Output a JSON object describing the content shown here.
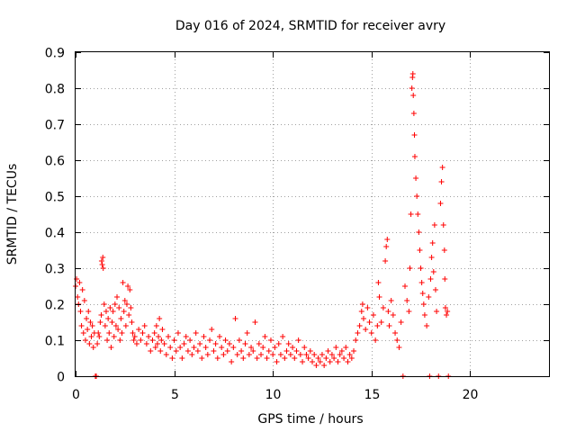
{
  "chart_data": {
    "type": "scatter",
    "title": "Day 016 of 2024, SRMTID for receiver avry",
    "xlabel": "GPS time / hours",
    "ylabel": "SRMTID / TECUs",
    "xlim": [
      0,
      24
    ],
    "ylim": [
      0,
      0.9
    ],
    "x_ticks": [
      0,
      5,
      10,
      15,
      20
    ],
    "y_ticks": [
      0,
      0.1,
      0.2,
      0.3,
      0.4,
      0.5,
      0.6,
      0.7,
      0.8,
      0.9
    ],
    "x_tick_labels": [
      "0",
      "5",
      "10",
      "15",
      "20"
    ],
    "y_tick_labels": [
      "0",
      "0.1",
      "0.2",
      "0.3",
      "0.4",
      "0.5",
      "0.6",
      "0.7",
      "0.8",
      "0.9"
    ],
    "grid": true,
    "marker": "+",
    "series": [
      {
        "name": "SRMTID",
        "color": "#ff0000",
        "points": [
          [
            0.0,
            0.25
          ],
          [
            0.05,
            0.27
          ],
          [
            0.1,
            0.22
          ],
          [
            0.15,
            0.2
          ],
          [
            0.2,
            0.26
          ],
          [
            0.25,
            0.18
          ],
          [
            0.3,
            0.14
          ],
          [
            0.35,
            0.24
          ],
          [
            0.4,
            0.12
          ],
          [
            0.45,
            0.21
          ],
          [
            0.5,
            0.1
          ],
          [
            0.55,
            0.16
          ],
          [
            0.6,
            0.13
          ],
          [
            0.65,
            0.18
          ],
          [
            0.7,
            0.09
          ],
          [
            0.75,
            0.15
          ],
          [
            0.8,
            0.11
          ],
          [
            0.85,
            0.14
          ],
          [
            0.9,
            0.08
          ],
          [
            0.95,
            0.12
          ],
          [
            1.0,
            0.0
          ],
          [
            1.05,
            0.0
          ],
          [
            1.1,
            0.09
          ],
          [
            1.15,
            0.12
          ],
          [
            1.2,
            0.11
          ],
          [
            1.25,
            0.15
          ],
          [
            1.3,
            0.17
          ],
          [
            1.32,
            0.32
          ],
          [
            1.35,
            0.31
          ],
          [
            1.38,
            0.33
          ],
          [
            1.4,
            0.3
          ],
          [
            1.45,
            0.2
          ],
          [
            1.5,
            0.14
          ],
          [
            1.55,
            0.18
          ],
          [
            1.6,
            0.1
          ],
          [
            1.65,
            0.16
          ],
          [
            1.7,
            0.12
          ],
          [
            1.75,
            0.19
          ],
          [
            1.8,
            0.08
          ],
          [
            1.85,
            0.15
          ],
          [
            1.9,
            0.18
          ],
          [
            1.95,
            0.11
          ],
          [
            2.0,
            0.2
          ],
          [
            2.05,
            0.14
          ],
          [
            2.1,
            0.22
          ],
          [
            2.15,
            0.13
          ],
          [
            2.2,
            0.19
          ],
          [
            2.25,
            0.1
          ],
          [
            2.3,
            0.16
          ],
          [
            2.35,
            0.12
          ],
          [
            2.4,
            0.26
          ],
          [
            2.45,
            0.18
          ],
          [
            2.5,
            0.21
          ],
          [
            2.55,
            0.14
          ],
          [
            2.6,
            0.2
          ],
          [
            2.65,
            0.25
          ],
          [
            2.7,
            0.17
          ],
          [
            2.75,
            0.24
          ],
          [
            2.8,
            0.19
          ],
          [
            2.85,
            0.15
          ],
          [
            2.9,
            0.12
          ],
          [
            2.95,
            0.1
          ],
          [
            3.0,
            0.11
          ],
          [
            3.1,
            0.09
          ],
          [
            3.2,
            0.13
          ],
          [
            3.3,
            0.1
          ],
          [
            3.4,
            0.12
          ],
          [
            3.5,
            0.14
          ],
          [
            3.6,
            0.09
          ],
          [
            3.7,
            0.11
          ],
          [
            3.8,
            0.07
          ],
          [
            3.9,
            0.1
          ],
          [
            4.0,
            0.12
          ],
          [
            4.05,
            0.08
          ],
          [
            4.1,
            0.14
          ],
          [
            4.15,
            0.09
          ],
          [
            4.2,
            0.11
          ],
          [
            4.25,
            0.16
          ],
          [
            4.3,
            0.07
          ],
          [
            4.35,
            0.1
          ],
          [
            4.4,
            0.13
          ],
          [
            4.5,
            0.09
          ],
          [
            4.6,
            0.06
          ],
          [
            4.7,
            0.11
          ],
          [
            4.8,
            0.08
          ],
          [
            4.9,
            0.05
          ],
          [
            5.0,
            0.1
          ],
          [
            5.1,
            0.07
          ],
          [
            5.2,
            0.12
          ],
          [
            5.3,
            0.08
          ],
          [
            5.4,
            0.05
          ],
          [
            5.5,
            0.09
          ],
          [
            5.6,
            0.11
          ],
          [
            5.7,
            0.07
          ],
          [
            5.8,
            0.1
          ],
          [
            5.9,
            0.06
          ],
          [
            6.0,
            0.08
          ],
          [
            6.1,
            0.12
          ],
          [
            6.2,
            0.07
          ],
          [
            6.3,
            0.09
          ],
          [
            6.4,
            0.05
          ],
          [
            6.5,
            0.11
          ],
          [
            6.6,
            0.08
          ],
          [
            6.7,
            0.06
          ],
          [
            6.8,
            0.1
          ],
          [
            6.9,
            0.13
          ],
          [
            7.0,
            0.07
          ],
          [
            7.1,
            0.09
          ],
          [
            7.2,
            0.05
          ],
          [
            7.3,
            0.11
          ],
          [
            7.4,
            0.08
          ],
          [
            7.5,
            0.06
          ],
          [
            7.6,
            0.1
          ],
          [
            7.7,
            0.07
          ],
          [
            7.8,
            0.09
          ],
          [
            7.9,
            0.04
          ],
          [
            8.0,
            0.08
          ],
          [
            8.1,
            0.16
          ],
          [
            8.2,
            0.06
          ],
          [
            8.3,
            0.1
          ],
          [
            8.4,
            0.07
          ],
          [
            8.5,
            0.05
          ],
          [
            8.6,
            0.09
          ],
          [
            8.7,
            0.12
          ],
          [
            8.8,
            0.06
          ],
          [
            8.9,
            0.08
          ],
          [
            9.0,
            0.07
          ],
          [
            9.1,
            0.15
          ],
          [
            9.2,
            0.05
          ],
          [
            9.3,
            0.09
          ],
          [
            9.4,
            0.06
          ],
          [
            9.5,
            0.08
          ],
          [
            9.6,
            0.11
          ],
          [
            9.7,
            0.05
          ],
          [
            9.8,
            0.07
          ],
          [
            9.9,
            0.1
          ],
          [
            10.0,
            0.06
          ],
          [
            10.1,
            0.08
          ],
          [
            10.2,
            0.04
          ],
          [
            10.3,
            0.09
          ],
          [
            10.4,
            0.06
          ],
          [
            10.5,
            0.11
          ],
          [
            10.6,
            0.05
          ],
          [
            10.7,
            0.07
          ],
          [
            10.8,
            0.09
          ],
          [
            10.9,
            0.06
          ],
          [
            11.0,
            0.08
          ],
          [
            11.1,
            0.05
          ],
          [
            11.2,
            0.07
          ],
          [
            11.3,
            0.1
          ],
          [
            11.4,
            0.06
          ],
          [
            11.5,
            0.04
          ],
          [
            11.6,
            0.08
          ],
          [
            11.7,
            0.06
          ],
          [
            11.8,
            0.05
          ],
          [
            11.9,
            0.07
          ],
          [
            12.0,
            0.04
          ],
          [
            12.1,
            0.06
          ],
          [
            12.2,
            0.03
          ],
          [
            12.3,
            0.05
          ],
          [
            12.4,
            0.04
          ],
          [
            12.5,
            0.06
          ],
          [
            12.6,
            0.03
          ],
          [
            12.7,
            0.05
          ],
          [
            12.8,
            0.07
          ],
          [
            12.9,
            0.04
          ],
          [
            13.0,
            0.06
          ],
          [
            13.1,
            0.05
          ],
          [
            13.2,
            0.08
          ],
          [
            13.3,
            0.04
          ],
          [
            13.4,
            0.06
          ],
          [
            13.5,
            0.07
          ],
          [
            13.6,
            0.05
          ],
          [
            13.7,
            0.08
          ],
          [
            13.8,
            0.04
          ],
          [
            13.9,
            0.06
          ],
          [
            14.0,
            0.05
          ],
          [
            14.1,
            0.07
          ],
          [
            14.2,
            0.1
          ],
          [
            14.3,
            0.12
          ],
          [
            14.4,
            0.14
          ],
          [
            14.5,
            0.18
          ],
          [
            14.55,
            0.2
          ],
          [
            14.6,
            0.16
          ],
          [
            14.7,
            0.13
          ],
          [
            14.8,
            0.19
          ],
          [
            14.9,
            0.15
          ],
          [
            15.0,
            0.12
          ],
          [
            15.1,
            0.17
          ],
          [
            15.2,
            0.1
          ],
          [
            15.3,
            0.14
          ],
          [
            15.35,
            0.26
          ],
          [
            15.4,
            0.22
          ],
          [
            15.5,
            0.15
          ],
          [
            15.6,
            0.19
          ],
          [
            15.7,
            0.32
          ],
          [
            15.75,
            0.36
          ],
          [
            15.8,
            0.38
          ],
          [
            15.85,
            0.18
          ],
          [
            15.9,
            0.14
          ],
          [
            16.0,
            0.21
          ],
          [
            16.1,
            0.17
          ],
          [
            16.2,
            0.12
          ],
          [
            16.3,
            0.1
          ],
          [
            16.4,
            0.08
          ],
          [
            16.5,
            0.15
          ],
          [
            16.6,
            0.0
          ],
          [
            16.7,
            0.25
          ],
          [
            16.8,
            0.21
          ],
          [
            16.9,
            0.18
          ],
          [
            16.95,
            0.3
          ],
          [
            17.0,
            0.45
          ],
          [
            17.05,
            0.8
          ],
          [
            17.08,
            0.83
          ],
          [
            17.1,
            0.84
          ],
          [
            17.12,
            0.78
          ],
          [
            17.15,
            0.73
          ],
          [
            17.18,
            0.67
          ],
          [
            17.2,
            0.61
          ],
          [
            17.25,
            0.55
          ],
          [
            17.3,
            0.5
          ],
          [
            17.35,
            0.45
          ],
          [
            17.4,
            0.4
          ],
          [
            17.45,
            0.35
          ],
          [
            17.5,
            0.3
          ],
          [
            17.55,
            0.26
          ],
          [
            17.6,
            0.23
          ],
          [
            17.65,
            0.2
          ],
          [
            17.7,
            0.17
          ],
          [
            17.8,
            0.14
          ],
          [
            17.9,
            0.22
          ],
          [
            17.95,
            0.0
          ],
          [
            18.0,
            0.27
          ],
          [
            18.05,
            0.33
          ],
          [
            18.1,
            0.37
          ],
          [
            18.15,
            0.29
          ],
          [
            18.2,
            0.42
          ],
          [
            18.25,
            0.24
          ],
          [
            18.3,
            0.18
          ],
          [
            18.4,
            0.0
          ],
          [
            18.5,
            0.48
          ],
          [
            18.55,
            0.54
          ],
          [
            18.6,
            0.58
          ],
          [
            18.65,
            0.42
          ],
          [
            18.7,
            0.35
          ],
          [
            18.72,
            0.27
          ],
          [
            18.75,
            0.19
          ],
          [
            18.8,
            0.17
          ],
          [
            18.85,
            0.18
          ],
          [
            18.9,
            0.0
          ]
        ]
      }
    ]
  }
}
